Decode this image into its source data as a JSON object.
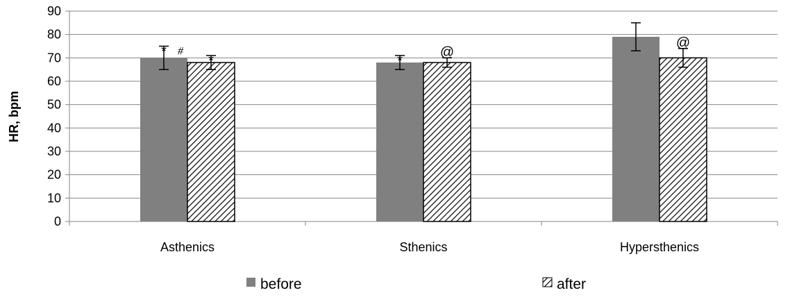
{
  "chart_data": {
    "type": "bar",
    "categories": [
      "Asthenics",
      "Sthenics",
      "Hypersthenics"
    ],
    "series": [
      {
        "name": "before",
        "values": [
          70,
          68,
          79
        ],
        "error": [
          5,
          3,
          6
        ],
        "color": "#808080",
        "pattern": "solid"
      },
      {
        "name": "after",
        "values": [
          68,
          68,
          70
        ],
        "error": [
          3,
          2,
          4
        ],
        "color": "#000000",
        "pattern": "diagonal-hatch"
      }
    ],
    "ylabel": "HR, bpm",
    "xlabel": "",
    "ylim": [
      0,
      90
    ],
    "yticks": [
      0,
      10,
      20,
      30,
      40,
      50,
      60,
      70,
      80,
      90
    ],
    "grid": true,
    "legend_position": "bottom",
    "annotations": [
      {
        "category": "Asthenics",
        "series": "before",
        "text": "*"
      },
      {
        "category": "Asthenics",
        "series": "before",
        "text": "#"
      },
      {
        "category": "Asthenics",
        "series": "after",
        "text": "*"
      },
      {
        "category": "Sthenics",
        "series": "before",
        "text": "*"
      },
      {
        "category": "Sthenics",
        "series": "after",
        "text": "@"
      },
      {
        "category": "Hypersthenics",
        "series": "after",
        "text": "@"
      }
    ]
  }
}
